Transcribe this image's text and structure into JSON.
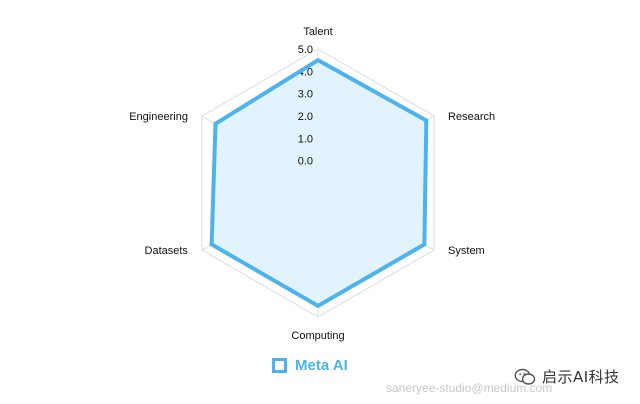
{
  "chart_data": {
    "type": "radar",
    "axes": [
      "Talent",
      "Research",
      "System",
      "Computing",
      "Datasets",
      "Engineering"
    ],
    "tick_labels": [
      "0.0",
      "1.0",
      "2.0",
      "3.0",
      "4.0",
      "5.0"
    ],
    "rmin": -1,
    "rmax": 5,
    "series": [
      {
        "name": "Meta AI",
        "values": [
          4.5,
          4.6,
          4.5,
          4.5,
          4.5,
          4.3
        ]
      }
    ],
    "colors": {
      "series": "#4db3ee",
      "fill": "#e3f3fd",
      "grid": "#dddddd"
    }
  },
  "legend": {
    "label": "Meta AI"
  },
  "watermark": {
    "url": "saneryee-studio@medium.com",
    "brand": "启示AI科技",
    "icon": "wechat-icon"
  }
}
